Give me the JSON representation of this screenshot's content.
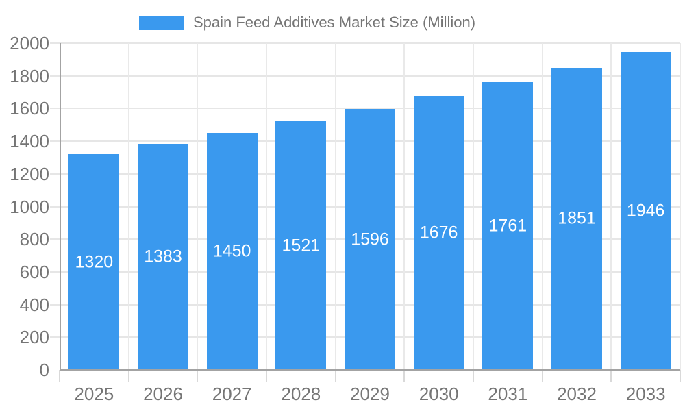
{
  "legend": {
    "label": "Spain Feed Additives Market Size (Million)",
    "swatch_color": "#3a99ee"
  },
  "chart_data": {
    "type": "bar",
    "title": "Spain Feed Additives Market Size (Million)",
    "categories": [
      "2025",
      "2026",
      "2027",
      "2028",
      "2029",
      "2030",
      "2031",
      "2032",
      "2033"
    ],
    "values": [
      1320,
      1383,
      1450,
      1521,
      1596,
      1676,
      1761,
      1851,
      1946
    ],
    "value_labels": [
      "1320",
      "1383",
      "1450",
      "1521",
      "1596",
      "1676",
      "1761",
      "1851",
      "1946"
    ],
    "xlabel": "",
    "ylabel": "",
    "ylim": [
      0,
      2000
    ],
    "ytick_step": 200,
    "yticks": [
      0,
      200,
      400,
      600,
      800,
      1000,
      1200,
      1400,
      1600,
      1800,
      2000
    ],
    "grid": true,
    "legend_position": "top",
    "bar_color": "#3a99ee",
    "value_label_color": "#ffffff",
    "axis_text_color": "#757575",
    "gridline_color": "#e6e6e6",
    "axis_line_color": "#a3a3a3"
  }
}
